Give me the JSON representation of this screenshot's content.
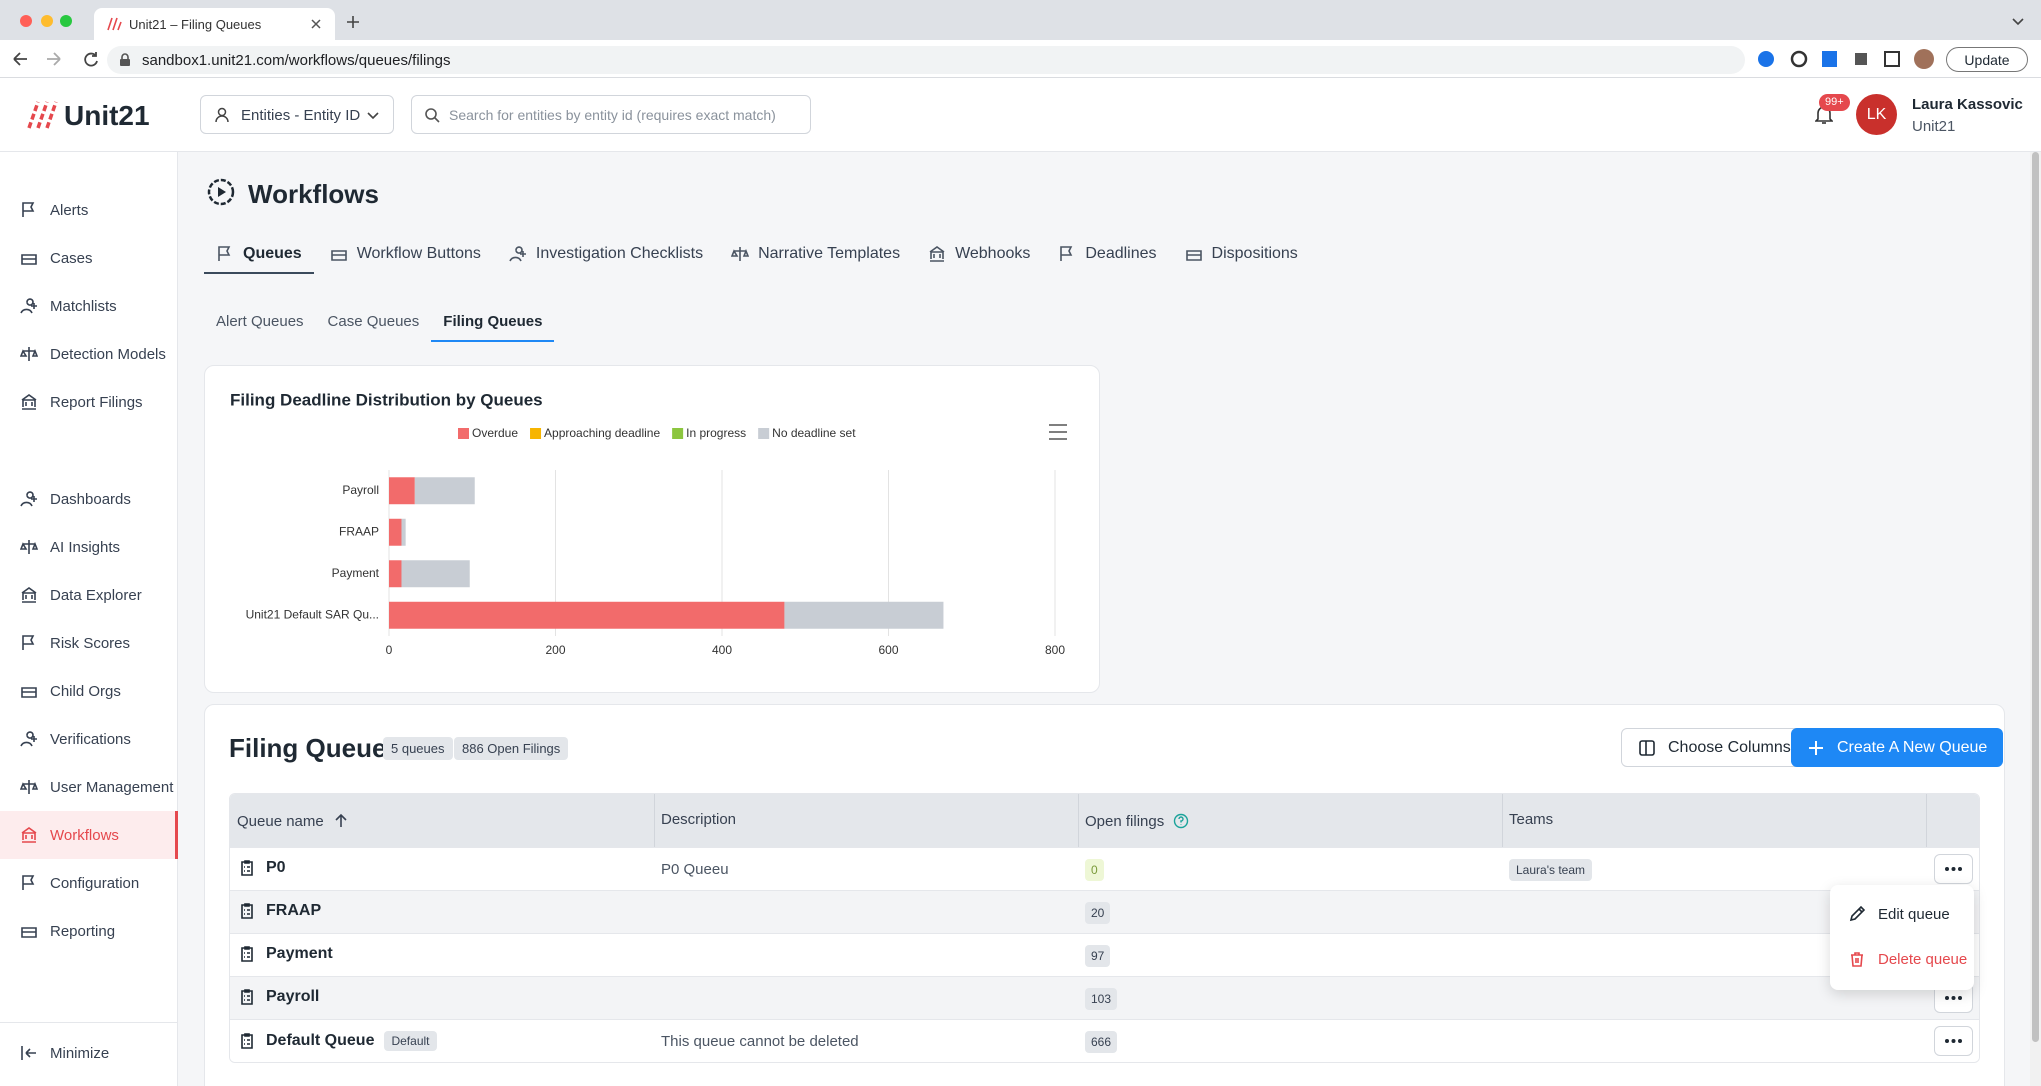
{
  "browser": {
    "tab_title": "Unit21 – Filing Queues",
    "url": "sandbox1.unit21.com/workflows/queues/filings",
    "update_button": "Update"
  },
  "header": {
    "logo": "Unit21",
    "entity_select": "Entities - Entity ID",
    "search_placeholder": "Search for entities by entity id (requires exact match)",
    "notification_badge": "99+",
    "avatar_initials": "LK",
    "user_name": "Laura Kassovic",
    "user_org": "Unit21"
  },
  "sidebar": {
    "sections": [
      [
        "Alerts",
        "Cases",
        "Matchlists",
        "Detection Models",
        "Report Filings"
      ],
      [
        "Dashboards",
        "AI Insights",
        "Data Explorer",
        "Risk Scores",
        "Child Orgs",
        "Verifications",
        "User Management",
        "Workflows",
        "Configuration",
        "Reporting"
      ]
    ],
    "selected": [
      1,
      7
    ],
    "minimize": "Minimize"
  },
  "page": {
    "title": "Workflows",
    "tabs": [
      "Queues",
      "Workflow Buttons",
      "Investigation Checklists",
      "Narrative Templates",
      "Webhooks",
      "Deadlines",
      "Dispositions"
    ],
    "tabs_selected": 0,
    "subtabs": [
      "Alert Queues",
      "Case Queues",
      "Filing Queues"
    ],
    "subtabs_selected": 2
  },
  "chart_data": {
    "type": "bar",
    "orientation": "horizontal",
    "stacked": true,
    "title": "Filing Deadline Distribution by Queues",
    "categories": [
      "Payroll",
      "FRAAP",
      "Payment",
      "Unit21 Default SAR Qu..."
    ],
    "series": [
      {
        "name": "Overdue",
        "color": "#f26b6b",
        "values": [
          31,
          15,
          15,
          475
        ]
      },
      {
        "name": "Approaching deadline",
        "color": "#f7b500",
        "values": [
          0,
          0,
          0,
          0
        ]
      },
      {
        "name": "In progress",
        "color": "#8cc63f",
        "values": [
          0,
          0,
          0,
          0
        ]
      },
      {
        "name": "No deadline set",
        "color": "#c8cdd4",
        "values": [
          72,
          5,
          82,
          191
        ]
      }
    ],
    "xlim": [
      0,
      800
    ],
    "xticks": [
      0,
      200,
      400,
      600,
      800
    ],
    "grid": true
  },
  "queues": {
    "title": "Filing Queues",
    "count_badge": "5 queues",
    "filings_badge": "886 Open Filings",
    "choose_columns": "Choose Columns",
    "create_button": "Create A New Queue",
    "table": {
      "columns": [
        "Queue name",
        "Description",
        "Open filings",
        "Teams"
      ],
      "rows": [
        {
          "name": "P0",
          "description": "P0 Queeu",
          "open_filings": 0,
          "team": "Laura's team"
        },
        {
          "name": "FRAAP",
          "open_filings": 20
        },
        {
          "name": "Payment",
          "open_filings": 97
        },
        {
          "name": "Payroll",
          "open_filings": 103
        },
        {
          "name": "Default Queue",
          "tag": "Default",
          "description": "This queue cannot be deleted",
          "open_filings": 666
        }
      ]
    }
  },
  "menu": {
    "items": [
      "Edit queue",
      "Delete queue"
    ]
  }
}
